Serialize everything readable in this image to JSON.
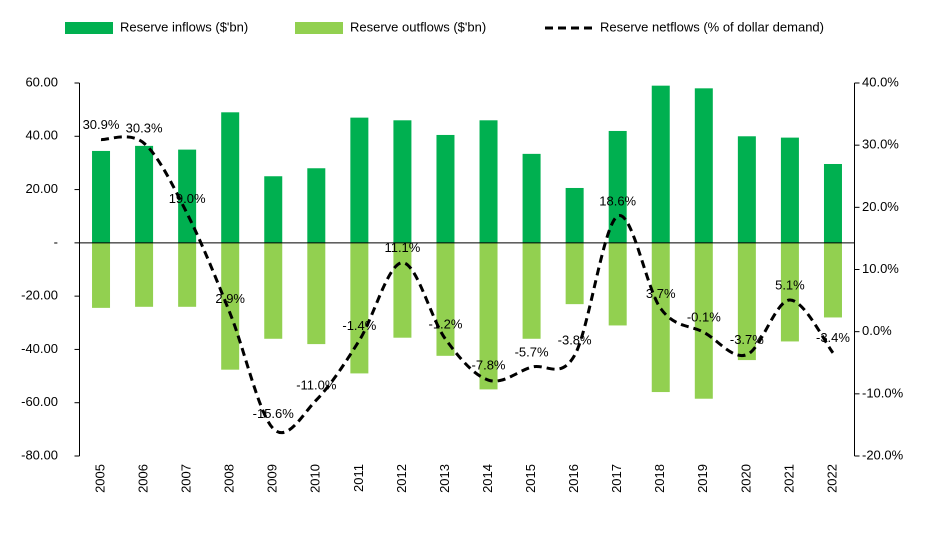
{
  "chart_data": {
    "type": "bar-line",
    "categories": [
      "2005",
      "2006",
      "2007",
      "2008",
      "2009",
      "2010",
      "2011",
      "2012",
      "2013",
      "2014",
      "2015",
      "2016",
      "2017",
      "2018",
      "2019",
      "2020",
      "2021",
      "2022"
    ],
    "series": [
      {
        "name": "Reserve inflows ($'bn)",
        "color": "#00b050",
        "values": [
          34.5,
          36.4,
          35,
          49,
          25,
          28,
          47,
          46,
          40.5,
          46,
          33.4,
          20.6,
          42,
          59,
          58,
          40,
          39.5,
          29.6
        ]
      },
      {
        "name": "Reserve outflows ($'bn)",
        "color": "#92d050",
        "values": [
          -24.4,
          -24,
          -24,
          -47.6,
          -36,
          -38,
          -49,
          -35.6,
          -42.4,
          -55,
          -36,
          -23,
          -31,
          -56,
          -58.5,
          -44,
          -37,
          -28
        ]
      },
      {
        "name": "Reserve netflows (% of dollar demand)",
        "color": "#000000",
        "axis": "y2",
        "values": [
          30.9,
          30.3,
          19.0,
          2.9,
          -15.6,
          -11.0,
          -1.4,
          11.1,
          -1.2,
          -7.8,
          -5.7,
          -3.8,
          18.6,
          3.7,
          -0.1,
          -3.7,
          5.1,
          -3.4
        ],
        "value_labels": [
          "30.9%",
          "30.3%",
          "19.0%",
          "2.9%",
          "-15.6%",
          "-11.0%",
          "-1.4%",
          "11.1%",
          "-1.2%",
          "-7.8%",
          "-5.7%",
          "-3.8%",
          "18.6%",
          "3.7%",
          "-0.1%",
          "-3.7%",
          "5.1%",
          "-3.4%"
        ]
      }
    ],
    "ylim": [
      -80,
      60
    ],
    "yticks": [
      {
        "value": -80,
        "label": "-80.00"
      },
      {
        "value": -60,
        "label": "-60.00"
      },
      {
        "value": -40,
        "label": "-40.00"
      },
      {
        "value": -20,
        "label": "-20.00"
      },
      {
        "value": 0,
        "label": "-"
      },
      {
        "value": 20,
        "label": "20.00"
      },
      {
        "value": 40,
        "label": "40.00"
      },
      {
        "value": 60,
        "label": "60.00"
      }
    ],
    "y2lim": [
      -20,
      40
    ],
    "y2ticks": [
      {
        "value": -20,
        "label": "-20.0%"
      },
      {
        "value": -10,
        "label": "-10.0%"
      },
      {
        "value": 0,
        "label": "0.0%"
      },
      {
        "value": 10,
        "label": "10.0%"
      },
      {
        "value": 20,
        "label": "20.0%"
      },
      {
        "value": 30,
        "label": "30.0%"
      },
      {
        "value": 40,
        "label": "40.0%"
      }
    ]
  }
}
